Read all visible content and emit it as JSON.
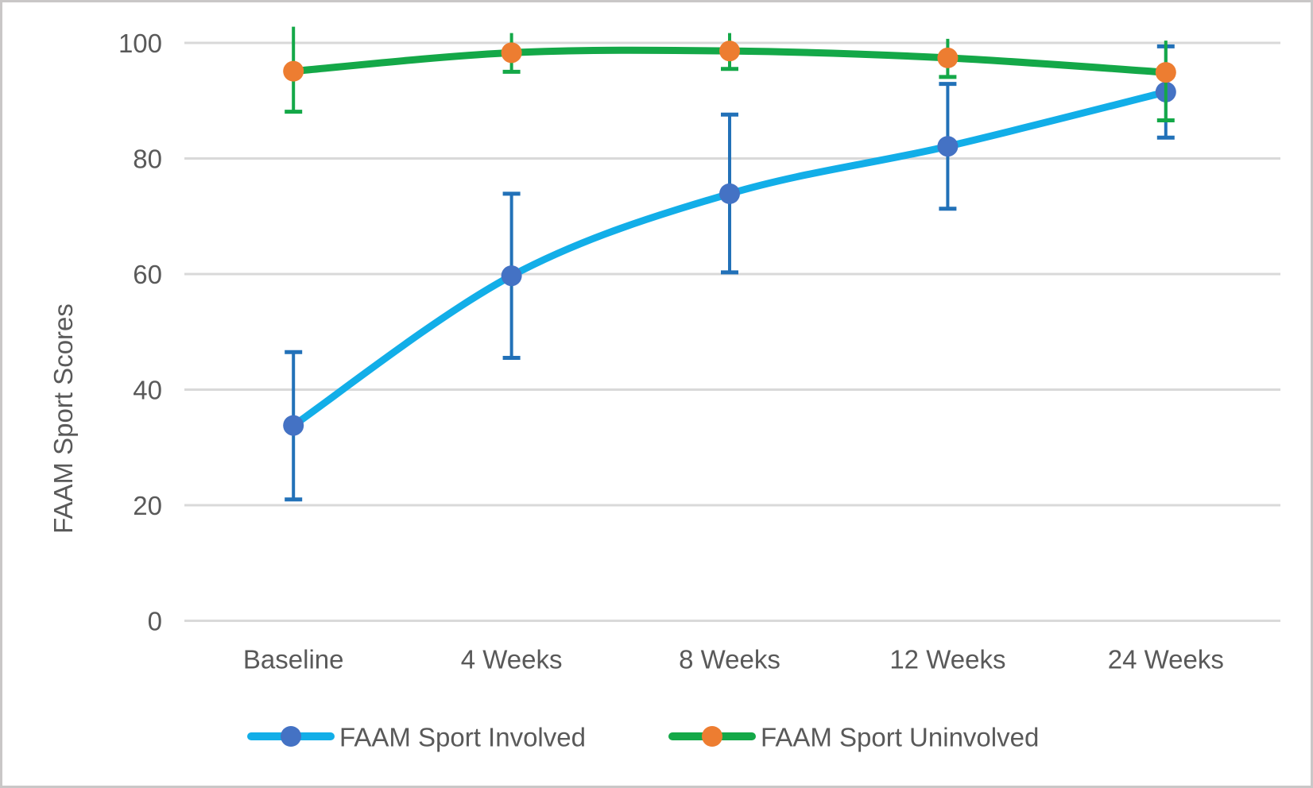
{
  "chart_data": {
    "type": "line",
    "title": "",
    "ylabel": "FAAM Sport Scores",
    "xlabel": "",
    "categories": [
      "Baseline",
      "4 Weeks",
      "8 Weeks",
      "12 Weeks",
      "24 Weeks"
    ],
    "yticks": [
      0,
      20,
      40,
      60,
      80,
      100
    ],
    "ylim": [
      0,
      100
    ],
    "grid": "horizontal",
    "legend_position": "bottom",
    "series": [
      {
        "name": "FAAM Sport Involved",
        "line_color": "#12AEE8",
        "marker_color": "#4472C4",
        "error_color": "#2271B8",
        "values": [
          33.8,
          59.7,
          73.9,
          82.1,
          91.5
        ],
        "error_up": [
          12.7,
          14.2,
          13.7,
          10.8,
          7.9
        ],
        "error_down": [
          12.8,
          14.2,
          13.6,
          10.8,
          7.9
        ],
        "caps": {
          "top": true,
          "bottom": true
        }
      },
      {
        "name": "FAAM Sport Uninvolved",
        "line_color": "#14A848",
        "marker_color": "#ED7D31",
        "error_color": "#14A848",
        "values": [
          95.1,
          98.3,
          98.6,
          97.4,
          94.9
        ],
        "error_up": [
          7.7,
          3.4,
          3.1,
          3.3,
          5.5
        ],
        "error_down": [
          7.0,
          3.3,
          3.1,
          3.3,
          8.3
        ],
        "caps": {
          "top": false,
          "bottom": true
        }
      }
    ],
    "colors": {
      "grid": "#D9D9D9",
      "text": "#595959",
      "background": "#FFFFFF",
      "frame_border": "#C9C7C7"
    }
  }
}
